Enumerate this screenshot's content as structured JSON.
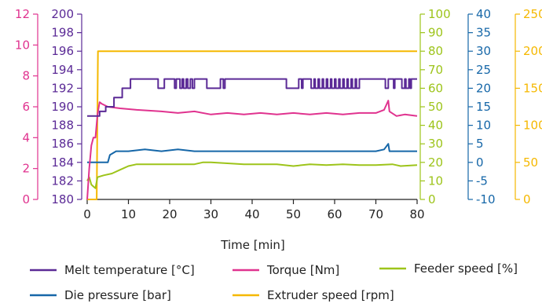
{
  "chart_data": {
    "type": "line",
    "xlabel": "Time [min]",
    "xlim": [
      0,
      80
    ],
    "x_ticks": [
      "0",
      "10",
      "20",
      "30",
      "40",
      "50",
      "60",
      "70",
      "80"
    ],
    "grid": false,
    "legend_position": "bottom",
    "axes": [
      {
        "id": "torque",
        "range": [
          0,
          12
        ],
        "ticks": [
          "0",
          "2",
          "4",
          "6",
          "8",
          "10",
          "12"
        ],
        "color": "#e0338f",
        "side": "left"
      },
      {
        "id": "melt_temp",
        "range": [
          180,
          200
        ],
        "ticks": [
          "180",
          "182",
          "184",
          "186",
          "188",
          "190",
          "192",
          "194",
          "196",
          "198",
          "200"
        ],
        "color": "#5b2a96",
        "side": "left"
      },
      {
        "id": "feeder",
        "range": [
          0,
          100
        ],
        "ticks": [
          "0",
          "10",
          "20",
          "30",
          "40",
          "50",
          "60",
          "70",
          "80",
          "90",
          "100"
        ],
        "color": "#9dc41a",
        "side": "right",
        "unit": "rpm"
      },
      {
        "id": "pressure",
        "range": [
          -10,
          40
        ],
        "ticks": [
          "-10",
          "-5",
          "0",
          "5",
          "10",
          "15",
          "20",
          "25",
          "30",
          "35",
          "40"
        ],
        "color": "#1667a8",
        "side": "right"
      },
      {
        "id": "extruder",
        "range": [
          0,
          250
        ],
        "ticks": [
          "0",
          "50",
          "100",
          "150",
          "200",
          "250"
        ],
        "color": "#f5b800",
        "side": "right"
      }
    ],
    "series": [
      {
        "name": "Melt temperature [°C]",
        "axis": "melt_temp",
        "color": "#5b2a96",
        "step": true,
        "points": [
          [
            0,
            189
          ],
          [
            2,
            189
          ],
          [
            2.5,
            189
          ],
          [
            3,
            189.5
          ],
          [
            4,
            189.5
          ],
          [
            4.5,
            190
          ],
          [
            6,
            190
          ],
          [
            6.5,
            191
          ],
          [
            8,
            191
          ],
          [
            8.5,
            192
          ],
          [
            10,
            192
          ],
          [
            10.5,
            193
          ],
          [
            17,
            193
          ],
          [
            17.2,
            192
          ],
          [
            18.5,
            192
          ],
          [
            18.7,
            193
          ],
          [
            21,
            193
          ],
          [
            21.2,
            192
          ],
          [
            21.6,
            193
          ],
          [
            22.5,
            192
          ],
          [
            23,
            193
          ],
          [
            23.4,
            192
          ],
          [
            24,
            193
          ],
          [
            24.4,
            192
          ],
          [
            25,
            193
          ],
          [
            25.5,
            192
          ],
          [
            26,
            193
          ],
          [
            28.5,
            193
          ],
          [
            29,
            192
          ],
          [
            32,
            192
          ],
          [
            32.3,
            193
          ],
          [
            33,
            192
          ],
          [
            33.4,
            193
          ],
          [
            48,
            193
          ],
          [
            48.3,
            192
          ],
          [
            51,
            192
          ],
          [
            51.3,
            193
          ],
          [
            52,
            192
          ],
          [
            52.3,
            193
          ],
          [
            54,
            193
          ],
          [
            54.3,
            192
          ],
          [
            55,
            193
          ],
          [
            55.3,
            192
          ],
          [
            56,
            193
          ],
          [
            56.3,
            192
          ],
          [
            57,
            193
          ],
          [
            57.3,
            192
          ],
          [
            58,
            193
          ],
          [
            58.3,
            192
          ],
          [
            59,
            193
          ],
          [
            59.3,
            192
          ],
          [
            60,
            193
          ],
          [
            60.3,
            192
          ],
          [
            61,
            193
          ],
          [
            61.3,
            192
          ],
          [
            62,
            193
          ],
          [
            62.3,
            192
          ],
          [
            63,
            193
          ],
          [
            63.3,
            192
          ],
          [
            64,
            193
          ],
          [
            64.3,
            192
          ],
          [
            65,
            193
          ],
          [
            65.3,
            192
          ],
          [
            66,
            193
          ],
          [
            72,
            193
          ],
          [
            72.3,
            192
          ],
          [
            73,
            193
          ],
          [
            74,
            193
          ],
          [
            74.3,
            192
          ],
          [
            74.6,
            193
          ],
          [
            76,
            193
          ],
          [
            76.3,
            192
          ],
          [
            77,
            193
          ],
          [
            77.3,
            192
          ],
          [
            78,
            193
          ],
          [
            78.3,
            192
          ],
          [
            78.6,
            193
          ],
          [
            80,
            193
          ]
        ]
      },
      {
        "name": "Torque [Nm]",
        "axis": "torque",
        "color": "#e0338f",
        "step": false,
        "points": [
          [
            0,
            0
          ],
          [
            0.5,
            2
          ],
          [
            1,
            3.5
          ],
          [
            1.5,
            4
          ],
          [
            2,
            4
          ],
          [
            2.5,
            5.5
          ],
          [
            3,
            6.3
          ],
          [
            3.5,
            6.2
          ],
          [
            5,
            6
          ],
          [
            8,
            5.9
          ],
          [
            12,
            5.8
          ],
          [
            18,
            5.7
          ],
          [
            22,
            5.6
          ],
          [
            26,
            5.7
          ],
          [
            30,
            5.5
          ],
          [
            34,
            5.6
          ],
          [
            38,
            5.5
          ],
          [
            42,
            5.6
          ],
          [
            46,
            5.5
          ],
          [
            50,
            5.6
          ],
          [
            54,
            5.5
          ],
          [
            58,
            5.6
          ],
          [
            62,
            5.5
          ],
          [
            66,
            5.6
          ],
          [
            70,
            5.6
          ],
          [
            72,
            5.8
          ],
          [
            73,
            6.4
          ],
          [
            73.3,
            5.7
          ],
          [
            75,
            5.4
          ],
          [
            77,
            5.5
          ],
          [
            80,
            5.4
          ]
        ]
      },
      {
        "name": "Feeder speed [%]",
        "axis": "feeder",
        "color": "#9dc41a",
        "step": false,
        "points": [
          [
            0,
            10
          ],
          [
            0.5,
            12
          ],
          [
            1,
            8
          ],
          [
            1.5,
            7
          ],
          [
            2,
            6
          ],
          [
            2.5,
            12
          ],
          [
            4,
            13
          ],
          [
            6,
            14
          ],
          [
            8,
            16
          ],
          [
            10,
            18
          ],
          [
            12,
            19
          ],
          [
            14,
            19
          ],
          [
            18,
            19
          ],
          [
            22,
            19
          ],
          [
            26,
            19
          ],
          [
            28,
            20
          ],
          [
            30,
            20
          ],
          [
            34,
            19.5
          ],
          [
            38,
            19
          ],
          [
            42,
            19
          ],
          [
            46,
            19
          ],
          [
            50,
            18
          ],
          [
            54,
            19
          ],
          [
            58,
            18.5
          ],
          [
            62,
            19
          ],
          [
            66,
            18.5
          ],
          [
            70,
            18.5
          ],
          [
            74,
            19
          ],
          [
            76,
            18
          ],
          [
            80,
            18.5
          ]
        ]
      },
      {
        "name": "Die pressure [bar]",
        "axis": "pressure",
        "color": "#1667a8",
        "step": false,
        "points": [
          [
            0,
            0
          ],
          [
            2,
            0
          ],
          [
            4,
            0
          ],
          [
            5,
            0
          ],
          [
            5.5,
            2
          ],
          [
            7,
            3
          ],
          [
            10,
            3
          ],
          [
            14,
            3.5
          ],
          [
            18,
            3
          ],
          [
            22,
            3.5
          ],
          [
            26,
            3
          ],
          [
            30,
            3
          ],
          [
            34,
            3
          ],
          [
            38,
            3
          ],
          [
            42,
            3
          ],
          [
            46,
            3
          ],
          [
            50,
            3
          ],
          [
            54,
            3
          ],
          [
            58,
            3
          ],
          [
            62,
            3
          ],
          [
            66,
            3
          ],
          [
            70,
            3
          ],
          [
            72,
            3.5
          ],
          [
            73,
            5
          ],
          [
            73.3,
            3
          ],
          [
            76,
            3
          ],
          [
            80,
            3
          ]
        ]
      },
      {
        "name": "Extruder speed [rpm]",
        "axis": "extruder",
        "color": "#f5b800",
        "step": false,
        "points": [
          [
            0,
            0
          ],
          [
            2.3,
            0
          ],
          [
            2.6,
            200
          ],
          [
            80,
            200
          ]
        ]
      }
    ],
    "legend": [
      {
        "label": "Melt temperature [°C]",
        "color": "#5b2a96"
      },
      {
        "label": "Torque [Nm]",
        "color": "#e0338f"
      },
      {
        "label": "Feeder speed [%]",
        "color": "#9dc41a"
      },
      {
        "label": "Die pressure [bar]",
        "color": "#1667a8"
      },
      {
        "label": "Extruder speed [rpm]",
        "color": "#f5b800"
      }
    ]
  }
}
